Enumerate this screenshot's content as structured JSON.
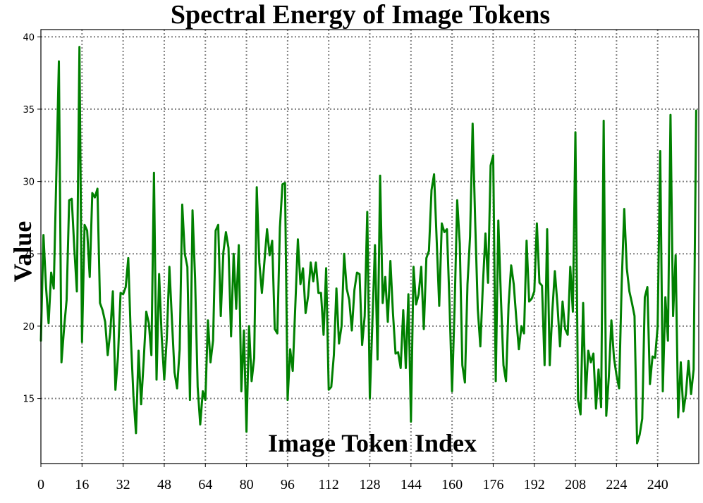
{
  "chart_data": {
    "type": "line",
    "title": "Spectral Energy of Image Tokens",
    "xlabel": "Image Token Index",
    "ylabel": "Value",
    "xlim": [
      0,
      256
    ],
    "ylim": [
      10.5,
      40.5
    ],
    "xticks": [
      0,
      16,
      32,
      48,
      64,
      80,
      96,
      112,
      128,
      144,
      160,
      176,
      192,
      208,
      224,
      240
    ],
    "yticks": [
      15,
      20,
      25,
      30,
      35,
      40
    ],
    "grid": true,
    "series": [
      {
        "color": "#008000",
        "values": [
          19.0,
          26.3,
          22.7,
          20.2,
          23.7,
          22.6,
          30.4,
          38.3,
          17.5,
          19.8,
          21.8,
          28.7,
          28.8,
          25.4,
          22.4,
          39.3,
          18.9,
          27.0,
          26.6,
          23.4,
          29.2,
          28.9,
          29.5,
          21.6,
          21.1,
          20.3,
          18.0,
          19.6,
          22.4,
          15.6,
          17.9,
          22.3,
          22.2,
          22.7,
          24.7,
          19.2,
          15.2,
          12.6,
          18.3,
          14.6,
          17.6,
          21.0,
          20.2,
          18.0,
          30.6,
          16.3,
          23.6,
          19.3,
          16.3,
          19.2,
          24.1,
          20.4,
          16.8,
          15.7,
          18.4,
          28.4,
          25.0,
          24.1,
          14.9,
          28.0,
          23.3,
          15.8,
          13.2,
          15.5,
          14.9,
          20.4,
          17.5,
          19.0,
          26.6,
          27.0,
          20.7,
          25.1,
          26.5,
          25.4,
          19.3,
          25.0,
          21.2,
          25.6,
          15.5,
          19.7,
          12.7,
          20.0,
          16.2,
          17.8,
          29.6,
          24.4,
          22.3,
          24.5,
          26.7,
          24.9,
          25.9,
          19.8,
          19.5,
          26.8,
          29.8,
          29.9,
          14.9,
          18.4,
          16.9,
          21.4,
          26.0,
          22.9,
          24.0,
          20.9,
          22.1,
          24.4,
          23.1,
          24.4,
          22.3,
          22.3,
          19.4,
          24.0,
          15.6,
          15.8,
          18.0,
          22.6,
          18.8,
          20.0,
          25.0,
          22.6,
          21.8,
          19.7,
          22.5,
          23.7,
          23.6,
          18.7,
          20.7,
          27.9,
          15.0,
          20.3,
          25.6,
          17.7,
          30.4,
          21.6,
          23.4,
          20.3,
          24.5,
          20.9,
          18.1,
          18.2,
          17.1,
          21.1,
          17.1,
          22.2,
          13.4,
          24.1,
          21.5,
          22.2,
          24.1,
          19.8,
          24.7,
          25.2,
          29.4,
          30.5,
          26.0,
          21.4,
          27.1,
          26.5,
          26.7,
          21.6,
          15.5,
          21.4,
          28.7,
          25.7,
          17.3,
          16.1,
          22.9,
          26.2,
          34.0,
          27.2,
          21.2,
          18.6,
          22.9,
          26.4,
          23.0,
          31.1,
          31.8,
          16.2,
          27.3,
          22.0,
          17.3,
          16.2,
          21.5,
          24.2,
          22.9,
          20.5,
          18.4,
          20.0,
          19.5,
          25.9,
          21.7,
          21.9,
          22.4,
          27.1,
          23.0,
          22.8,
          17.3,
          26.7,
          17.3,
          21.0,
          23.8,
          21.5,
          18.6,
          21.7,
          19.8,
          19.4,
          24.1,
          21.0,
          33.4,
          14.9,
          13.9,
          21.6,
          15.0,
          18.3,
          17.5,
          18.1,
          14.3,
          17.0,
          14.4,
          34.2,
          13.8,
          16.5,
          20.4,
          17.8,
          16.6,
          15.7,
          22.9,
          28.1,
          24.0,
          22.4,
          21.6,
          20.7,
          11.9,
          12.5,
          13.6,
          22.0,
          22.7,
          16.0,
          17.9,
          17.8,
          20.0,
          32.1,
          15.5,
          22.0,
          19.0,
          34.6,
          20.7,
          24.9,
          13.7,
          17.5,
          14.1,
          15.3,
          17.6,
          15.3,
          17.0,
          34.9
        ]
      }
    ]
  }
}
